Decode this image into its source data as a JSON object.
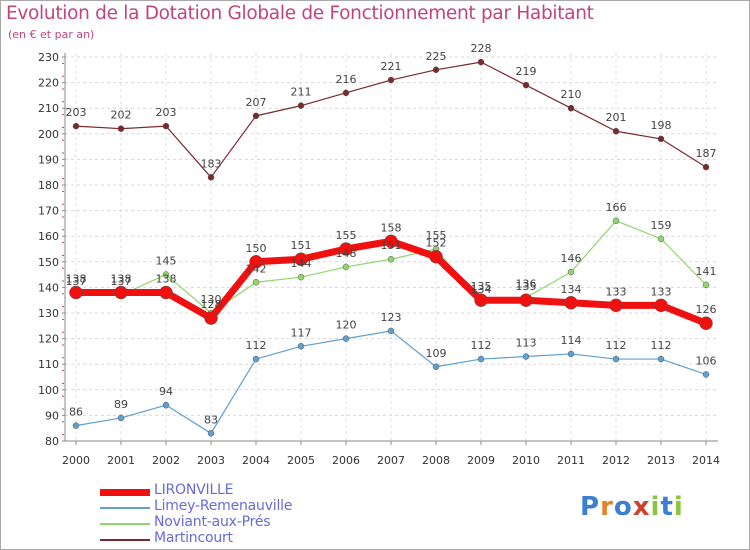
{
  "chart_data": {
    "type": "line",
    "title": "Evolution de la Dotation Globale de Fonctionnement par Habitant",
    "subtitle": "(en € et par an)",
    "xlabel": "",
    "ylabel": "",
    "x": [
      "2000",
      "2001",
      "2002",
      "2003",
      "2004",
      "2005",
      "2006",
      "2007",
      "2008",
      "2009",
      "2010",
      "2011",
      "2012",
      "2013",
      "2014"
    ],
    "ylim": [
      80,
      230
    ],
    "yticks": [
      80,
      90,
      100,
      110,
      120,
      130,
      140,
      150,
      160,
      170,
      180,
      190,
      200,
      210,
      220,
      230
    ],
    "grid": true,
    "legend_position": "bottom-left",
    "series": [
      {
        "name": "Martincourt",
        "color": "#7a2a2e",
        "values": [
          203,
          202,
          203,
          183,
          207,
          211,
          216,
          221,
          225,
          228,
          219,
          210,
          201,
          198,
          187
        ]
      },
      {
        "name": "Noviant-aux-Prés",
        "color": "#8fd66c",
        "values": [
          137,
          137,
          145,
          130,
          142,
          144,
          148,
          151,
          155,
          134,
          136,
          146,
          166,
          159,
          141
        ]
      },
      {
        "name": "Limey-Remenauville",
        "color": "#5fa0d0",
        "values": [
          86,
          89,
          94,
          83,
          112,
          117,
          120,
          123,
          109,
          112,
          113,
          114,
          112,
          112,
          106
        ]
      },
      {
        "name": "LIRONVILLE",
        "color": "#f01010",
        "values": [
          138,
          138,
          138,
          128,
          150,
          151,
          155,
          158,
          152,
          135,
          135,
          134,
          133,
          133,
          126
        ]
      }
    ],
    "legend": [
      "LIRONVILLE",
      "Limey-Remenauville",
      "Noviant-aux-Prés",
      "Martincourt"
    ]
  },
  "logo": {
    "letters": [
      "P",
      "r",
      "o",
      "x",
      "i",
      "t",
      "i"
    ],
    "colors": [
      "#3a7fd0",
      "#e0862a",
      "#3a7fd0",
      "#d0402a",
      "#8cc43a",
      "#3a7fd0",
      "#8cc43a"
    ]
  }
}
